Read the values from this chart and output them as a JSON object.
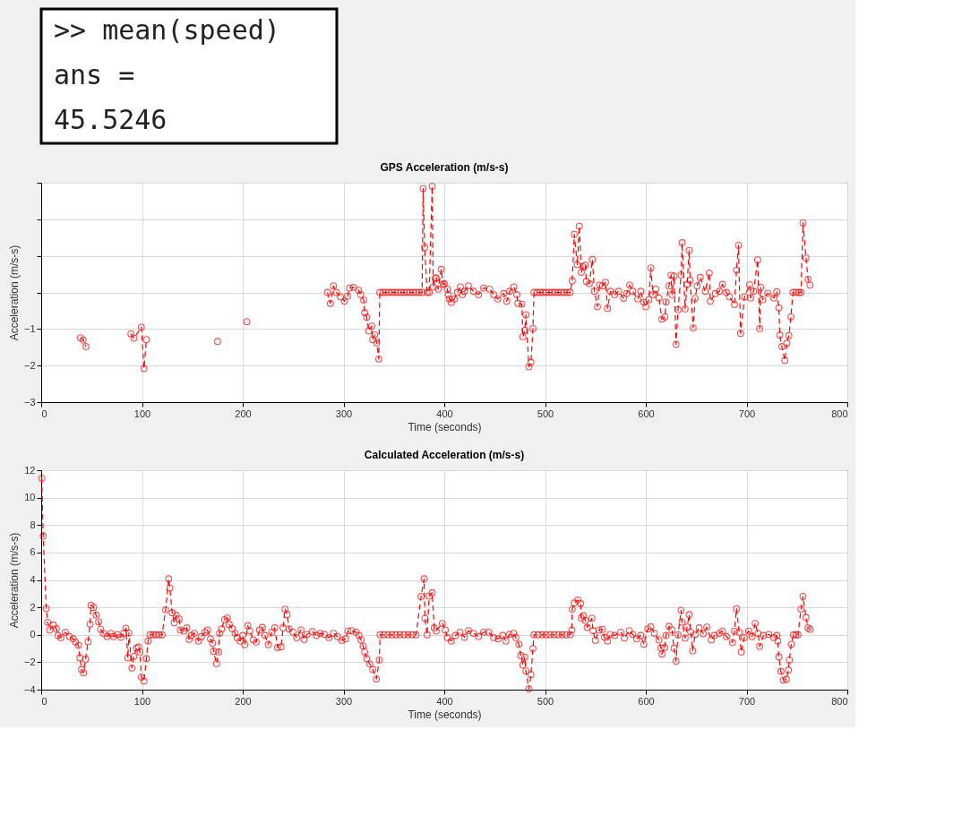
{
  "chart_data": [
    {
      "type": "other",
      "annotations": [
        ">> mean(speed)",
        "ans =",
        "45.5246"
      ]
    },
    {
      "type": "line",
      "title": "GPS Acceleration (m/s-s)",
      "xlabel": "Time (seconds)",
      "ylabel": "Acceleration (m/s-s)",
      "xlim": [
        0,
        800
      ],
      "xticks": [
        0,
        100,
        200,
        300,
        400,
        500,
        600,
        700,
        800
      ],
      "ylim": [
        -3,
        3
      ],
      "yticks": [
        -3,
        -2,
        -1,
        {
          "value": 0,
          "label": null
        },
        {
          "value": 1,
          "label": null
        },
        {
          "value": 2,
          "label": null
        },
        {
          "value": 3,
          "label": null
        }
      ],
      "grid": true,
      "marker": "circle",
      "line_style": "dashed",
      "series": [
        {
          "color": "#ff0000",
          "x": [
            39,
            41.6,
            44.5,
            60,
            89,
            92,
            99.4,
            102,
            104.4,
            140,
            175,
            190,
            204,
            240,
            284,
            287,
            290,
            293,
            297,
            301,
            304,
            306,
            310,
            315,
            317,
            320,
            321,
            323,
            325,
            328,
            329,
            331,
            333,
            335,
            336,
            339,
            342,
            345,
            348,
            351,
            354,
            357,
            360,
            363,
            366,
            369,
            372,
            375,
            378,
            379,
            380.5,
            383,
            385,
            388,
            389,
            391,
            392,
            394,
            397,
            399,
            400,
            403,
            404,
            405,
            407,
            410,
            413,
            416,
            418,
            420,
            424,
            429,
            434,
            439,
            445,
            449,
            453,
            459,
            462,
            465,
            469,
            472,
            473,
            477,
            478,
            480,
            481,
            484,
            486,
            488,
            489,
            492,
            495,
            498,
            501,
            504,
            507,
            510,
            513,
            516,
            519,
            522,
            525,
            527,
            529,
            532,
            534,
            536,
            538,
            540,
            541,
            544,
            547,
            549,
            552,
            554,
            557,
            560,
            562,
            565,
            569,
            573,
            578,
            581,
            584,
            587,
            592,
            595,
            598,
            600,
            603,
            605,
            607,
            610,
            613,
            616,
            619,
            620,
            623,
            625,
            626,
            628,
            630,
            632,
            635,
            636,
            639,
            641,
            643,
            644,
            647,
            649,
            651,
            654,
            659,
            663,
            664,
            669,
            673,
            676,
            680,
            683,
            688,
            690,
            692,
            694,
            698,
            703,
            704,
            707,
            711,
            713,
            714,
            716,
            721,
            727,
            730,
            732,
            733,
            735,
            738,
            740,
            742,
            744,
            746,
            749,
            752,
            754,
            756,
            759,
            761,
            763
          ],
          "values": [
            -1.24,
            -1.3,
            -1.48,
            null,
            -1.13,
            -1.25,
            -0.95,
            -2.08,
            -1.29,
            null,
            -1.34,
            null,
            -0.8,
            null,
            0,
            -0.3,
            0.18,
            0,
            -0.12,
            -0.24,
            -0.1,
            0.12,
            0.14,
            0.06,
            -0.06,
            -0.21,
            -0.55,
            -0.68,
            -1.05,
            -0.92,
            -1.29,
            -1.16,
            -1.38,
            -1.82,
            0,
            0,
            0,
            0,
            0,
            0,
            0,
            0,
            0,
            0,
            0,
            0,
            0,
            0,
            0,
            2.84,
            1.23,
            0,
            0,
            2.9,
            0.15,
            0.39,
            0.4,
            0.09,
            0.63,
            0.22,
            0.24,
            0.09,
            -0.06,
            -0.18,
            -0.27,
            -0.18,
            0,
            0.15,
            -0.06,
            0.03,
            0.18,
            0.03,
            -0.06,
            0.12,
            0.09,
            -0.06,
            -0.18,
            -0.03,
            -0.24,
            0.03,
            0.15,
            -0.06,
            -0.3,
            -0.32,
            -1.21,
            -1.03,
            -0.61,
            -2.03,
            -1.91,
            -0.99,
            0,
            0,
            0,
            0,
            0,
            0,
            0,
            0,
            0,
            0,
            0,
            0,
            0,
            0.32,
            1.59,
            0.76,
            1.81,
            0.55,
            0.7,
            0.75,
            0.3,
            0.24,
            0.9,
            0.03,
            -0.39,
            0.2,
            0.18,
            0.28,
            -0.44,
            0.03,
            -0.06,
            0.03,
            -0.16,
            -0.03,
            0.2,
            0.03,
            -0.18,
            0.03,
            -0.27,
            -0.39,
            -0.2,
            0.67,
            -0.06,
            0.09,
            -0.15,
            -0.73,
            -0.67,
            -0.26,
            0.18,
            0.47,
            -0.06,
            0.45,
            -1.42,
            -0.47,
            0.48,
            1.36,
            -0.45,
            0.22,
            1.15,
            0.33,
            -0.97,
            -0.16,
            0.18,
            0.41,
            0.03,
            0.53,
            -0.24,
            -0.03,
            0.03,
            0.22,
            0,
            -0.12,
            -0.33,
            0.61,
            1.29,
            -1.12,
            -0.12,
            0.21,
            -0.15,
            0.03,
            0.89,
            -0.99,
            0.14,
            -0.2,
            -0.02,
            -0.15,
            0.02,
            -0.42,
            -1.17,
            -1.48,
            -1.86,
            -1.39,
            -1.18,
            -0.67,
            0,
            0,
            0,
            0,
            1.9,
            0.94,
            0.36,
            0.2
          ]
        }
      ]
    },
    {
      "type": "line",
      "title": "Calculated Acceleration (m/s-s)",
      "xlabel": "Time (seconds)",
      "ylabel": "Acceleration (m/s-s)",
      "xlim": [
        0,
        800
      ],
      "xticks": [
        0,
        100,
        200,
        300,
        400,
        500,
        600,
        700,
        800
      ],
      "ylim": [
        -4,
        12
      ],
      "yticks": [
        -4,
        -2,
        0,
        2,
        4,
        6,
        8,
        10,
        12
      ],
      "grid": true,
      "marker": "circle",
      "line_style": "dashed",
      "series": [
        {
          "color": "#ff0000",
          "x": [
            0.6,
            2,
            5,
            6.4,
            8.4,
            12,
            15,
            16.6,
            19.5,
            24,
            28,
            31.7,
            34,
            37,
            38.4,
            40,
            42,
            44,
            46.5,
            48.5,
            49.4,
            52,
            54.4,
            57,
            59,
            61.6,
            65.4,
            69,
            72,
            75.6,
            79,
            82,
            84,
            86,
            87,
            90,
            92,
            94.5,
            96.5,
            98,
            99.4,
            102,
            104.4,
            106,
            108,
            111,
            114,
            117,
            120,
            123.5,
            126.5,
            127.6,
            130,
            132,
            134,
            137,
            138,
            141.6,
            144.5,
            146.8,
            149,
            152,
            156,
            159,
            162.5,
            165,
            168,
            170,
            171,
            174,
            176,
            177,
            179,
            182,
            184.6,
            186.6,
            189.5,
            192.4,
            194.5,
            197.4,
            200,
            202,
            205,
            207,
            210.5,
            213.4,
            216.6,
            219.5,
            222,
            225.3,
            228.8,
            231.7,
            234.6,
            238,
            240,
            242,
            244,
            246,
            249.7,
            253.5,
            257.8,
            260.8,
            263.7,
            269,
            273,
            276.7,
            281,
            285.5,
            290,
            294,
            298.5,
            302,
            304.4,
            308,
            312.5,
            315.4,
            317.4,
            319.5,
            321,
            323,
            326,
            329,
            332.6,
            335.5,
            336.3,
            340,
            344,
            348,
            352,
            356,
            360,
            364,
            368,
            372,
            377,
            380,
            380.8,
            383,
            385,
            388,
            390,
            392,
            398,
            401,
            403,
            407,
            411,
            415.5,
            420,
            424,
            429,
            434,
            439,
            444,
            449,
            453.5,
            458,
            461,
            464.6,
            468.7,
            471,
            474,
            476,
            478,
            480,
            481,
            484,
            486,
            488,
            489,
            493,
            497,
            501,
            505,
            509,
            513,
            517,
            521,
            525,
            526.6,
            527,
            529,
            532.5,
            535.4,
            536,
            538,
            540,
            541.8,
            546.5,
            547.7,
            550,
            553.5,
            557,
            559,
            562,
            564.6,
            569,
            575,
            578.7,
            583.6,
            587,
            591,
            595,
            598,
            602,
            605,
            608.5,
            613,
            615,
            616,
            618.7,
            620,
            623,
            626,
            628,
            630,
            632,
            635,
            636,
            639,
            641,
            643,
            644.5,
            646.5,
            649,
            653,
            657,
            660.5,
            665,
            668,
            673,
            676,
            680,
            686,
            688,
            690,
            692.7,
            694.7,
            697.7,
            702,
            705.5,
            708.5,
            711.4,
            713,
            716.7,
            722,
            727,
            730,
            731,
            732,
            734,
            736.5,
            739.5,
            741.5,
            742.4,
            744.4,
            746.5,
            749,
            751,
            754,
            756,
            759,
            761,
            763
          ],
          "values": [
            11.42,
            7.2,
            1.92,
            0.91,
            0.35,
            0.72,
            0.46,
            -0.05,
            -0.21,
            0.19,
            -0.13,
            -0.29,
            -0.53,
            -0.77,
            -1.68,
            -2.53,
            -2.77,
            -1.78,
            -0.5,
            0.78,
            2.16,
            2,
            1.44,
            0.94,
            0.4,
            0.11,
            -0.13,
            0.11,
            -0.13,
            0.03,
            -0.18,
            0.11,
            0.48,
            -1.68,
            0.14,
            -2.42,
            -1.57,
            -0.98,
            -0.88,
            -1.25,
            -3.09,
            -3.38,
            -1.73,
            -0.45,
            0,
            0,
            0,
            0,
            0,
            1.82,
            4.08,
            3.42,
            1.6,
            0.88,
            1.42,
            1.15,
            0.35,
            0.27,
            0.51,
            -0.34,
            -0.05,
            0.11,
            -0.45,
            -0.13,
            0.19,
            0.35,
            -0.29,
            -0.61,
            -1.2,
            -2.1,
            -1.25,
            0.11,
            0.43,
            1.1,
            1.23,
            0.75,
            0.46,
            0.11,
            -0.21,
            -0.45,
            -0.05,
            -0.72,
            0.67,
            0.27,
            -0.37,
            -0.53,
            0.35,
            0.54,
            -0.05,
            -0.72,
            0.19,
            0.51,
            -0.93,
            -0.88,
            0.51,
            1.87,
            1.47,
            0.43,
            0.19,
            -0.21,
            0.35,
            -0.34,
            0.03,
            0.24,
            -0.05,
            0.11,
            0.03,
            -0.21,
            0.11,
            -0.13,
            -0.4,
            -0.29,
            0.27,
            0.3,
            0.19,
            -0.05,
            -0.37,
            -0.82,
            -1.25,
            -1.73,
            -2.13,
            -2.53,
            -3.22,
            -1.84,
            0,
            0,
            0,
            0,
            0,
            0,
            0,
            0,
            0,
            0,
            2.8,
            4.08,
            1.2,
            0,
            2.83,
            3.07,
            0.51,
            0.27,
            0.83,
            0.35,
            -0.21,
            -0.45,
            -0.05,
            0.19,
            -0.18,
            0.3,
            0.11,
            -0.13,
            0.19,
            0.19,
            -0.21,
            -0.29,
            -0.05,
            -0.45,
            0.03,
            0.11,
            -0.21,
            -0.69,
            -1.52,
            -2.21,
            -1.62,
            -2.64,
            -3.94,
            -2.9,
            -1.0,
            0,
            0,
            0,
            0,
            0,
            0,
            0,
            0,
            0,
            0,
            0.35,
            1.87,
            2.32,
            2.54,
            2.27,
            1.23,
            1.39,
            1.04,
            0.54,
            1.2,
            0.3,
            -0.4,
            0.35,
            0.4,
            -0.18,
            -0.45,
            0.03,
            -0.05,
            0.19,
            -0.24,
            0.3,
            0.03,
            -0.29,
            -0.05,
            -0.69,
            0.43,
            0.59,
            0.11,
            -0.37,
            -0.96,
            -1.41,
            -0.93,
            -0.05,
            0.62,
            0.35,
            -0.98,
            -1.92,
            0,
            1.79,
            0.91,
            -0.24,
            0.56,
            1.47,
            0.19,
            -1.17,
            0.03,
            0.51,
            0.08,
            0.56,
            -0.37,
            -0.05,
            0.11,
            0.27,
            -0.13,
            -0.56,
            0.27,
            1.9,
            0.19,
            -1.25,
            -0.21,
            0.27,
            -0.13,
            0.83,
            0.11,
            -0.85,
            -0.05,
            0.03,
            -0.21,
            -0.05,
            -0.45,
            -1.6,
            -2.66,
            -3.3,
            -3.25,
            -2.58,
            -1.84,
            -0.69,
            0,
            0,
            0,
            1.87,
            2.8,
            1.26,
            0.51,
            0.4
          ]
        }
      ]
    }
  ]
}
